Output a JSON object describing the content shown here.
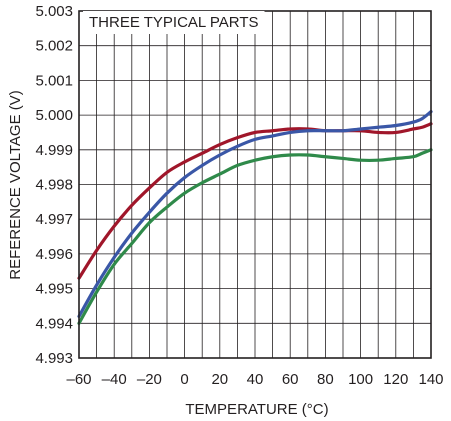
{
  "chart_data": {
    "type": "line",
    "xlabel": "TEMPERATURE (°C)",
    "ylabel": "REFERENCE VOLTAGE (V)",
    "annotation": "THREE TYPICAL PARTS",
    "xlim": [
      -60,
      140
    ],
    "ylim": [
      4.993,
      5.003
    ],
    "x_ticks": [
      -60,
      -40,
      -20,
      0,
      20,
      40,
      60,
      80,
      100,
      120,
      140
    ],
    "x_tick_labels": [
      "–60",
      "–40",
      "–20",
      "0",
      "20",
      "40",
      "60",
      "80",
      "100",
      "120",
      "140"
    ],
    "y_ticks": [
      4.993,
      4.994,
      4.995,
      4.996,
      4.997,
      4.998,
      4.999,
      5.0,
      5.001,
      5.002,
      5.003
    ],
    "y_tick_labels": [
      "4.993",
      "4.994",
      "4.995",
      "4.996",
      "4.997",
      "4.998",
      "4.999",
      "5.000",
      "5.001",
      "5.002",
      "5.003"
    ],
    "x_minor_step": 10,
    "grid": true,
    "colors": {
      "red": "#a0162a",
      "blue": "#3a57a7",
      "green": "#2f8a4a",
      "grid": "#231f20"
    },
    "series": [
      {
        "color": "#a0162a",
        "x": [
          -60,
          -50,
          -40,
          -30,
          -20,
          -10,
          0,
          10,
          20,
          30,
          40,
          50,
          60,
          70,
          80,
          90,
          100,
          110,
          120,
          130,
          135,
          140
        ],
        "y": [
          4.9953,
          4.9961,
          4.9968,
          4.9974,
          4.9979,
          4.99835,
          4.99865,
          4.9989,
          4.99915,
          4.99935,
          4.9995,
          4.99955,
          4.9996,
          4.9996,
          4.99955,
          4.99955,
          4.99955,
          4.9995,
          4.9995,
          4.9996,
          4.99965,
          4.99975
        ]
      },
      {
        "color": "#3a57a7",
        "x": [
          -60,
          -50,
          -40,
          -30,
          -20,
          -10,
          0,
          10,
          20,
          30,
          40,
          50,
          60,
          70,
          80,
          90,
          100,
          110,
          120,
          130,
          135,
          140
        ],
        "y": [
          4.9942,
          4.9951,
          4.9959,
          4.9966,
          4.9972,
          4.99775,
          4.9982,
          4.99855,
          4.99885,
          4.9991,
          4.9993,
          4.9994,
          4.9995,
          4.99955,
          4.99955,
          4.99955,
          4.9996,
          4.99965,
          4.9997,
          4.9998,
          4.9999,
          5.0001
        ]
      },
      {
        "color": "#2f8a4a",
        "x": [
          -60,
          -50,
          -40,
          -30,
          -20,
          -10,
          0,
          10,
          20,
          30,
          40,
          50,
          60,
          70,
          80,
          90,
          100,
          110,
          120,
          130,
          135,
          140
        ],
        "y": [
          4.994,
          4.9949,
          4.9957,
          4.9963,
          4.9969,
          4.99735,
          4.99775,
          4.99805,
          4.9983,
          4.99855,
          4.9987,
          4.9988,
          4.99885,
          4.99885,
          4.9988,
          4.99875,
          4.9987,
          4.9987,
          4.99875,
          4.9988,
          4.9989,
          4.999
        ]
      }
    ]
  }
}
